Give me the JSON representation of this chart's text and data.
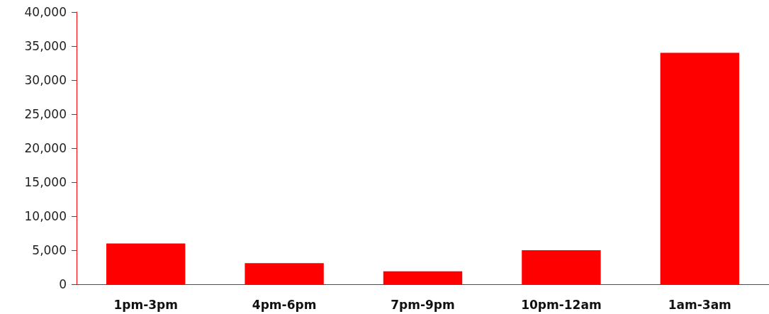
{
  "chart_data": {
    "type": "bar",
    "categories": [
      "1pm-3pm",
      "4pm-6pm",
      "7pm-9pm",
      "10pm-12am",
      "1am-3am"
    ],
    "values": [
      6000,
      3100,
      1900,
      5000,
      34000
    ],
    "color": "#ff0000",
    "ylim": [
      0,
      40000
    ],
    "yticks": [
      0,
      {
        "value": 5000,
        "label": "5,000"
      },
      {
        "value": 10000,
        "label": "10,000"
      },
      {
        "value": 15000,
        "label": "15,000"
      },
      {
        "value": 20000,
        "label": "20,000"
      },
      {
        "value": 25000,
        "label": "25,000"
      },
      {
        "value": 30000,
        "label": "30,000"
      },
      {
        "value": 35000,
        "label": "35,000"
      },
      {
        "value": 40000,
        "label": "40,000"
      }
    ],
    "grid": false
  }
}
